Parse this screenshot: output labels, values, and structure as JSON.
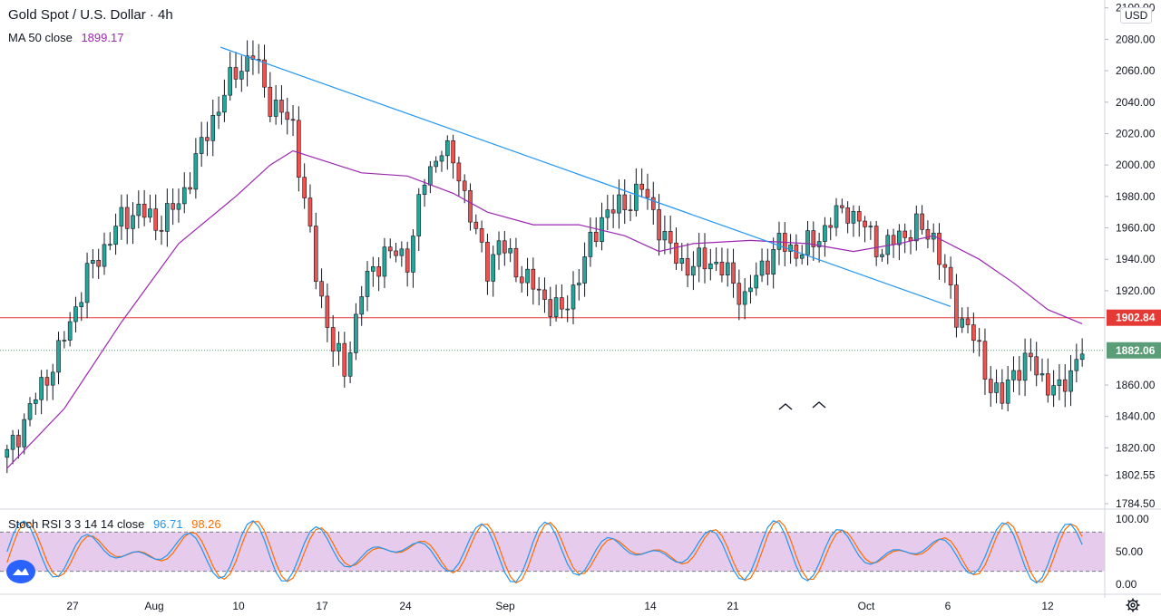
{
  "header": {
    "title": "Gold Spot / U.S. Dollar · 4h",
    "ma_label": "MA 50 close",
    "ma_value": "1899.17",
    "currency": "USD"
  },
  "stoch": {
    "label": "Stoch RSI 3 3 14 14 close",
    "k_value": "96.71",
    "d_value": "98.26",
    "k_color": "#2196f3",
    "d_color": "#ff6d00",
    "band_fill": "#e1bee7",
    "upper": 80,
    "lower": 20,
    "ticks": [
      "100.00",
      "50.00",
      "0.00"
    ]
  },
  "chart_data": {
    "type": "candlestick",
    "title": "Gold Spot / U.S. Dollar · 4h",
    "price_axis_ticks": [
      "2100.00",
      "2080.00",
      "2060.00",
      "2040.00",
      "2020.00",
      "2000.00",
      "1980.00",
      "1960.00",
      "1940.00",
      "1920.00",
      "1902.84",
      "1882.06",
      "1860.00",
      "1840.00",
      "1820.00",
      "1802.55",
      "1784.50"
    ],
    "ylim": [
      1784.5,
      2105
    ],
    "time_axis_labels": [
      "27",
      "Aug",
      "10",
      "17",
      "24",
      "Sep",
      "14",
      "21",
      "Oct",
      "6",
      "12"
    ],
    "horizontal_level": {
      "value": 1902.84,
      "color": "#e53935"
    },
    "last_price": {
      "value": 1882.06,
      "color": "#5b9d77"
    },
    "trendline": {
      "from": [
        "Aug 7",
        2075
      ],
      "to": [
        "Oct 6",
        1910
      ],
      "color": "#2196f3"
    },
    "price_path": [
      [
        0,
        1815
      ],
      [
        4,
        1845
      ],
      [
        9,
        1880
      ],
      [
        14,
        1930
      ],
      [
        20,
        1965
      ],
      [
        23,
        1972
      ],
      [
        26,
        1962
      ],
      [
        30,
        1975
      ],
      [
        36,
        2030
      ],
      [
        40,
        2060
      ],
      [
        43,
        2070
      ],
      [
        46,
        2040
      ],
      [
        50,
        2025
      ],
      [
        54,
        1930
      ],
      [
        57,
        1885
      ],
      [
        59,
        1868
      ],
      [
        62,
        1920
      ],
      [
        66,
        1945
      ],
      [
        70,
        1940
      ],
      [
        73,
        1990
      ],
      [
        76,
        2012
      ],
      [
        79,
        1995
      ],
      [
        82,
        1955
      ],
      [
        84,
        1935
      ],
      [
        86,
        1950
      ],
      [
        90,
        1930
      ],
      [
        94,
        1915
      ],
      [
        97,
        1905
      ],
      [
        100,
        1930
      ],
      [
        104,
        1968
      ],
      [
        108,
        1975
      ],
      [
        111,
        1985
      ],
      [
        113,
        1970
      ],
      [
        116,
        1945
      ],
      [
        119,
        1935
      ],
      [
        123,
        1940
      ],
      [
        126,
        1930
      ],
      [
        129,
        1915
      ],
      [
        132,
        1935
      ],
      [
        135,
        1950
      ],
      [
        138,
        1945
      ],
      [
        141,
        1950
      ],
      [
        144,
        1965
      ],
      [
        147,
        1972
      ],
      [
        150,
        1960
      ],
      [
        153,
        1945
      ],
      [
        156,
        1955
      ],
      [
        159,
        1960
      ],
      [
        162,
        1955
      ],
      [
        164,
        1930
      ],
      [
        166,
        1905
      ],
      [
        168,
        1898
      ],
      [
        170,
        1880
      ],
      [
        172,
        1860
      ],
      [
        174,
        1850
      ],
      [
        176,
        1870
      ],
      [
        179,
        1875
      ],
      [
        182,
        1860
      ],
      [
        184,
        1855
      ],
      [
        186,
        1870
      ],
      [
        188,
        1882
      ]
    ],
    "ma50_path": [
      [
        0,
        1807
      ],
      [
        10,
        1845
      ],
      [
        20,
        1900
      ],
      [
        30,
        1950
      ],
      [
        40,
        1980
      ],
      [
        46,
        2000
      ],
      [
        50,
        2009
      ],
      [
        56,
        2002
      ],
      [
        62,
        1995
      ],
      [
        70,
        1993
      ],
      [
        78,
        1982
      ],
      [
        84,
        1970
      ],
      [
        92,
        1962
      ],
      [
        100,
        1962
      ],
      [
        108,
        1955
      ],
      [
        114,
        1945
      ],
      [
        120,
        1950
      ],
      [
        130,
        1952
      ],
      [
        140,
        1950
      ],
      [
        148,
        1945
      ],
      [
        156,
        1950
      ],
      [
        162,
        1955
      ],
      [
        170,
        1940
      ],
      [
        176,
        1925
      ],
      [
        182,
        1908
      ],
      [
        188,
        1899
      ]
    ],
    "ma_color": "#9c27b0",
    "up_color": "#26a69a",
    "down_color": "#ef5350"
  }
}
